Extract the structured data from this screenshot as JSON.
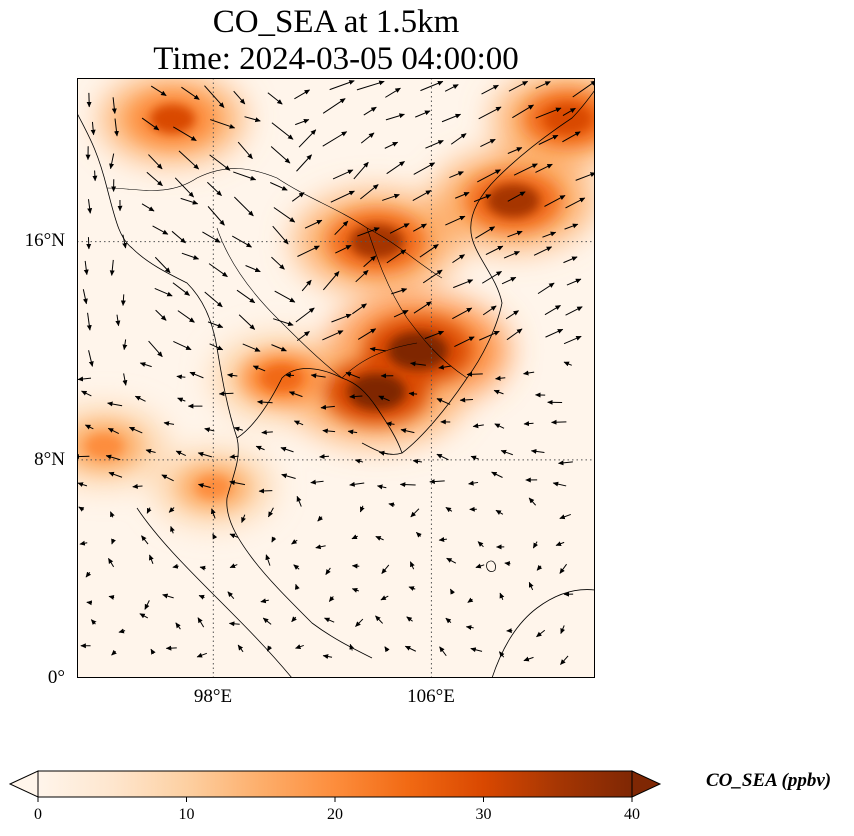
{
  "title_line1": "CO_SEA at 1.5km",
  "title_line2": "Time: 2024-03-05 04:00:00",
  "lat_ticks": [
    {
      "label": "16°N",
      "value": 16
    },
    {
      "label": "8°N",
      "value": 8
    },
    {
      "label": "0°",
      "value": 0
    }
  ],
  "lon_ticks": [
    {
      "label": "98°E",
      "value": 98
    },
    {
      "label": "106°E",
      "value": 106
    }
  ],
  "colorbar": {
    "label": "CO_SEA (ppbv)",
    "ticks": [
      "0",
      "10",
      "20",
      "30",
      "40"
    ],
    "min": 0,
    "max": 40,
    "extend": "both",
    "colormap": [
      "#fff5eb",
      "#fee6ce",
      "#fdd0a2",
      "#fdae6b",
      "#fd8d3c",
      "#f16913",
      "#d94801",
      "#a63603",
      "#7f2704"
    ]
  },
  "chart_data": {
    "type": "heatmap",
    "variable": "CO_SEA",
    "units": "ppbv",
    "level": "1.5km",
    "time": "2024-03-05 04:00:00",
    "lon_range": [
      93,
      112
    ],
    "lat_range": [
      0,
      22
    ],
    "gridlines": "dotted",
    "overlay": "wind vectors",
    "plumes": [
      {
        "lon": 96.5,
        "lat": 20.5,
        "value": 28
      },
      {
        "lon": 100.5,
        "lat": 11,
        "value": 26
      },
      {
        "lon": 104,
        "lat": 16,
        "value": 35
      },
      {
        "lon": 105.5,
        "lat": 12,
        "value": 40
      },
      {
        "lon": 104,
        "lat": 10.5,
        "value": 38
      },
      {
        "lon": 109,
        "lat": 17.5,
        "value": 34
      },
      {
        "lon": 111,
        "lat": 20.5,
        "value": 30
      },
      {
        "lon": 94,
        "lat": 8.5,
        "value": 22
      },
      {
        "lon": 98,
        "lat": 7,
        "value": 20
      }
    ]
  }
}
